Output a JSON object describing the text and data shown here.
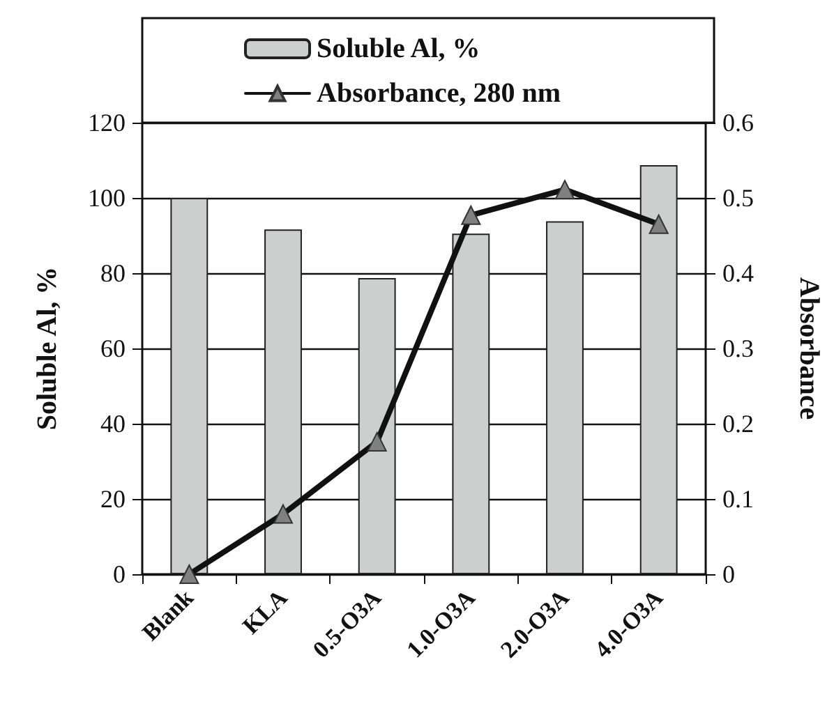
{
  "chart_data": {
    "type": "bar",
    "categories": [
      "Blank",
      "KLA",
      "0.5-O3A",
      "1.0-O3A",
      "2.0-O3A",
      "4.0-O3A"
    ],
    "series": [
      {
        "name": "Soluble Al, %",
        "color": "#cdcfce",
        "values": [
          100,
          91.6,
          78.7,
          90.5,
          93.8,
          108.7
        ]
      },
      {
        "name": "Absorbance, 280 nm",
        "type": "line",
        "axis": "y2",
        "color": "#111111",
        "values": [
          0,
          0.08,
          0.176,
          0.477,
          0.511,
          0.465
        ]
      }
    ],
    "ylabel": "Soluble Al, %",
    "y2label": "Absorbance",
    "ylim": [
      0,
      120
    ],
    "yticks": [
      0,
      20,
      40,
      60,
      80,
      100,
      120
    ],
    "y2lim": [
      0,
      0.6
    ],
    "y2ticks": [
      0,
      0.1,
      0.2,
      0.3,
      0.4,
      0.5,
      0.6
    ],
    "grid": "y",
    "legend": "top",
    "marker": "triangle",
    "line_style": "solid"
  }
}
